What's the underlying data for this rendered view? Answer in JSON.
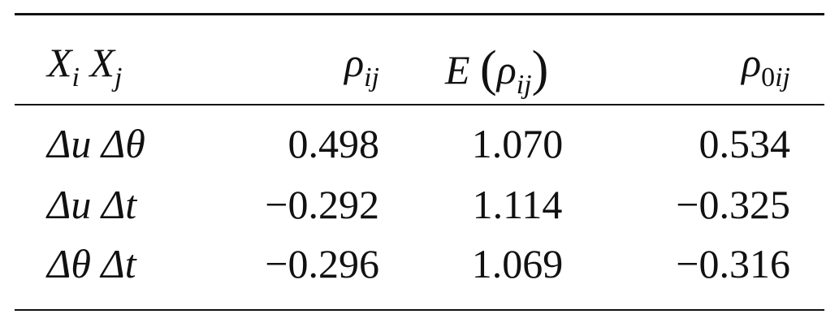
{
  "table": {
    "headers": {
      "pair": {
        "a": "X",
        "a_sub": "i",
        "b": "X",
        "b_sub": "j"
      },
      "rho": {
        "base": "ρ",
        "sub": "ij"
      },
      "expected": {
        "fn": "E",
        "open": "(",
        "base": "ρ",
        "sub": "ij",
        "close": ")"
      },
      "rho0": {
        "base": "ρ",
        "sub_num": "0",
        "sub": "ij"
      }
    },
    "rows": [
      {
        "pair_a": "Δu",
        "pair_b": "Δθ",
        "rho": "0.498",
        "expected": "1.070",
        "rho0": "0.534"
      },
      {
        "pair_a": "Δu",
        "pair_b": "Δt",
        "rho": "−0.292",
        "expected": "1.114",
        "rho0": "−0.325"
      },
      {
        "pair_a": "Δθ",
        "pair_b": "Δt",
        "rho": "−0.296",
        "expected": "1.069",
        "rho0": "−0.316"
      }
    ]
  }
}
